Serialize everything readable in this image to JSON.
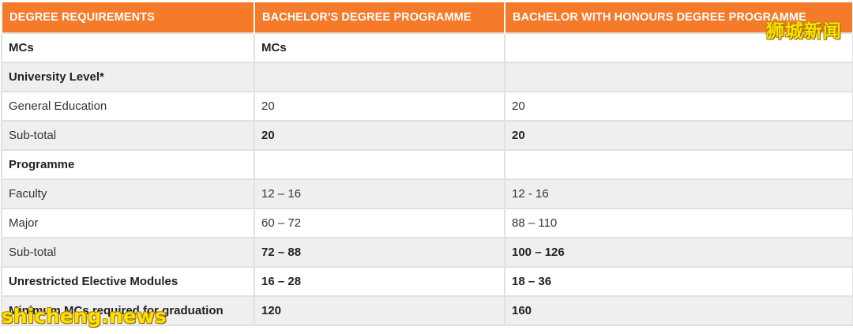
{
  "table": {
    "headers": [
      "DEGREE REQUIREMENTS",
      "BACHELOR'S DEGREE PROGRAMME",
      "BACHELOR WITH HONOURS DEGREE PROGRAMME"
    ],
    "rows": [
      {
        "label": "MCs",
        "c1": "MCs",
        "c2": "",
        "bold": true
      },
      {
        "label": "University Level*",
        "c1": "",
        "c2": "",
        "bold": true
      },
      {
        "label": "General Education",
        "c1": "20",
        "c2": "20",
        "bold": false
      },
      {
        "label": "Sub-total",
        "c1": "20",
        "c2": "20",
        "bold": false
      },
      {
        "label": "Programme",
        "c1": "",
        "c2": "",
        "bold": true
      },
      {
        "label": "Faculty",
        "c1": "12 – 16",
        "c2": "12 - 16",
        "bold": false
      },
      {
        "label": "Major",
        "c1": "60 – 72",
        "c2": "88 – 110",
        "bold": false
      },
      {
        "label": "Sub-total",
        "c1": "72 – 88",
        "c2": "100 – 126",
        "bold": false
      },
      {
        "label": "Unrestricted Elective Modules",
        "c1": "16 – 28",
        "c2": "18 – 36",
        "bold": true
      },
      {
        "label": "Minimum MCs required for graduation",
        "c1": "120",
        "c2": "160",
        "bold": true
      }
    ]
  },
  "watermarks": {
    "top_right": "狮城新闻",
    "bottom_left": "shicheng.news"
  },
  "colors": {
    "header_bg": "#f57a2a",
    "alt_row_bg": "#efeff1",
    "watermark": "#ffe100"
  }
}
